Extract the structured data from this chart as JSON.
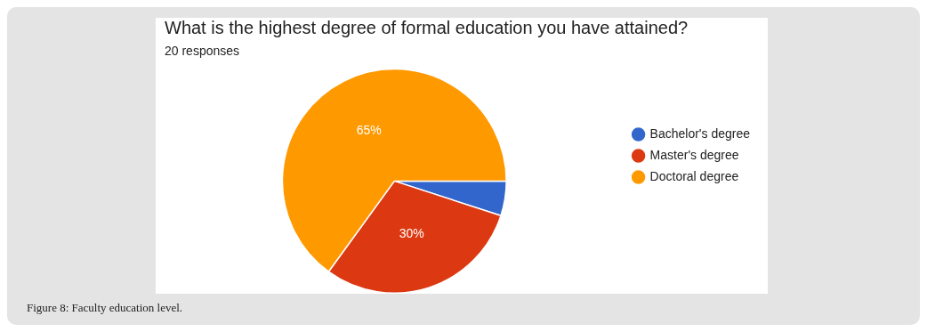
{
  "chart_data": {
    "type": "pie",
    "title": "What is the highest degree of formal education you have attained?",
    "subtitle": "20 responses",
    "categories": [
      "Bachelor's degree",
      "Master's degree",
      "Doctoral degree"
    ],
    "values": [
      5,
      30,
      65
    ],
    "colors": [
      "#3366cc",
      "#dc3912",
      "#ff9900"
    ],
    "value_labels": [
      null,
      "30%",
      "65%"
    ],
    "legend": "right",
    "annotations": [
      "Figure 8: Faculty education level."
    ]
  }
}
